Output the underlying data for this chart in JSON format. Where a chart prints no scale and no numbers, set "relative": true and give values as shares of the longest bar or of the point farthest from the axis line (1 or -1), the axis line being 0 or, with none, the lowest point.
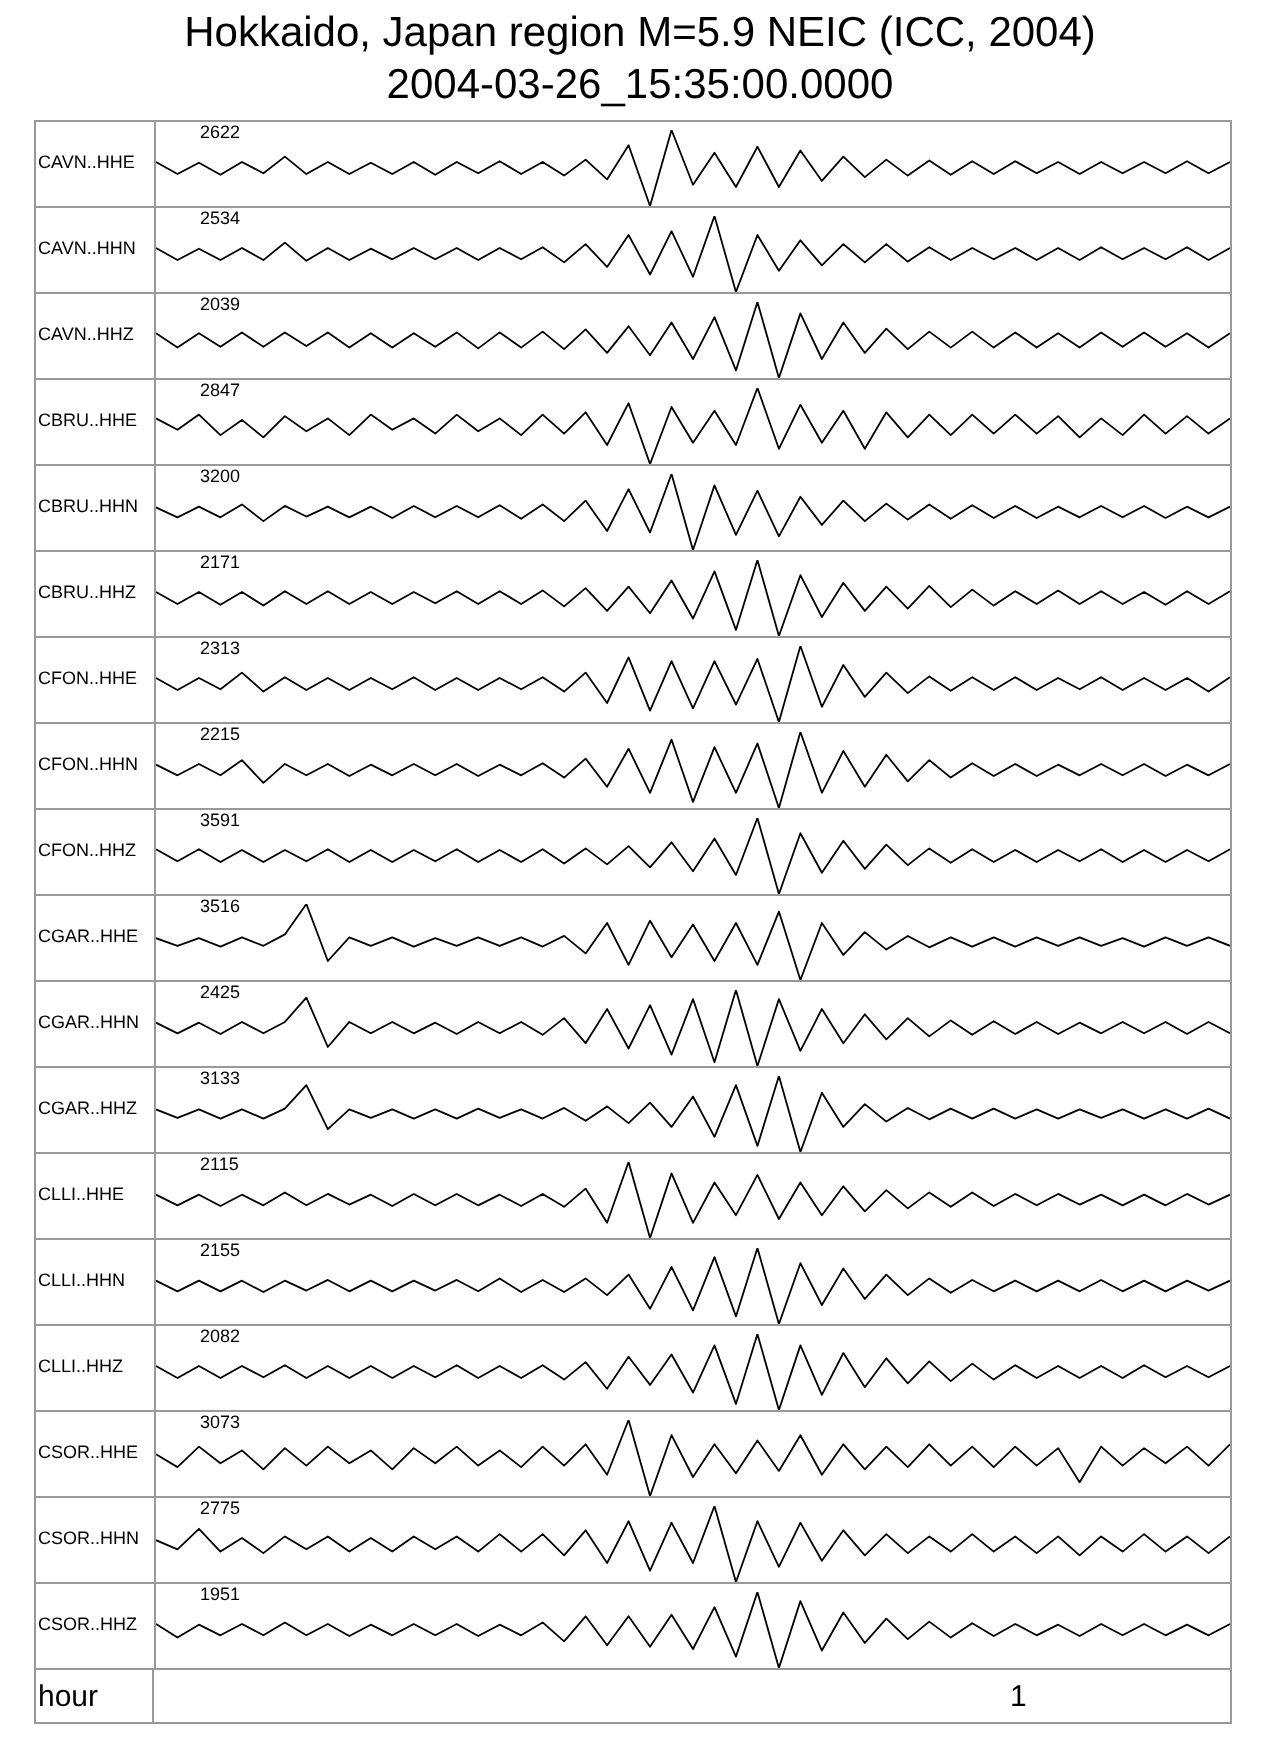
{
  "chart_data": [
    {
      "type": "line",
      "title": "Hokkaido, Japan region M=5.9 NEIC (ICC, 2004)",
      "subtitle": "2004-03-26_15:35:00.0000",
      "relative": true,
      "annotations": [
        "2622"
      ],
      "categories": [
        null,
        null,
        null,
        null,
        null,
        null,
        null,
        null,
        null,
        null,
        null,
        null,
        null,
        null,
        null,
        null,
        null,
        null,
        null,
        null,
        null,
        null,
        null,
        null,
        null,
        null,
        null,
        null,
        null,
        null,
        null,
        null,
        null,
        null,
        null,
        null,
        null,
        null,
        null,
        null,
        null,
        null,
        null,
        null,
        null,
        null,
        null,
        null,
        null,
        null,
        null
      ],
      "series": [
        {
          "name": "CAVN..HHE",
          "color": "#000000",
          "values": [
            0.58,
            0.42,
            0.57,
            0.41,
            0.58,
            0.43,
            0.65,
            0.42,
            0.58,
            0.42,
            0.57,
            0.42,
            0.58,
            0.41,
            0.58,
            0.43,
            0.59,
            0.42,
            0.58,
            0.4,
            0.61,
            0.35,
            0.8,
            0,
            1,
            0.28,
            0.7,
            0.25,
            0.78,
            0.25,
            0.73,
            0.33,
            0.65,
            0.38,
            0.61,
            0.4,
            0.6,
            0.41,
            0.59,
            0.42,
            0.59,
            0.43,
            0.58,
            0.42,
            0.58,
            0.43,
            0.58,
            0.43,
            0.59,
            0.43,
            0.58
          ]
        }
      ]
    },
    {
      "type": "line",
      "relative": true,
      "annotations": [
        "2534"
      ],
      "categories": [
        null,
        null,
        null,
        null,
        null,
        null,
        null,
        null,
        null,
        null,
        null,
        null,
        null,
        null,
        null,
        null,
        null,
        null,
        null,
        null,
        null,
        null,
        null,
        null,
        null,
        null,
        null,
        null,
        null,
        null,
        null,
        null,
        null,
        null,
        null,
        null,
        null,
        null,
        null,
        null,
        null,
        null,
        null,
        null,
        null,
        null,
        null,
        null,
        null,
        null,
        null
      ],
      "series": [
        {
          "name": "CAVN..HHN",
          "color": "#000000",
          "values": [
            0.58,
            0.42,
            0.57,
            0.42,
            0.58,
            0.42,
            0.65,
            0.41,
            0.58,
            0.42,
            0.57,
            0.43,
            0.58,
            0.43,
            0.58,
            0.42,
            0.58,
            0.43,
            0.59,
            0.39,
            0.63,
            0.33,
            0.75,
            0.23,
            0.8,
            0.2,
            1,
            0,
            0.75,
            0.28,
            0.68,
            0.35,
            0.63,
            0.39,
            0.63,
            0.4,
            0.59,
            0.42,
            0.58,
            0.43,
            0.58,
            0.42,
            0.58,
            0.42,
            0.59,
            0.43,
            0.58,
            0.43,
            0.59,
            0.42,
            0.58
          ]
        }
      ]
    },
    {
      "type": "line",
      "relative": true,
      "annotations": [
        "2039"
      ],
      "categories": [
        null,
        null,
        null,
        null,
        null,
        null,
        null,
        null,
        null,
        null,
        null,
        null,
        null,
        null,
        null,
        null,
        null,
        null,
        null,
        null,
        null,
        null,
        null,
        null,
        null,
        null,
        null,
        null,
        null,
        null,
        null,
        null,
        null,
        null,
        null,
        null,
        null,
        null,
        null,
        null,
        null,
        null,
        null,
        null,
        null,
        null,
        null,
        null,
        null,
        null,
        null
      ],
      "series": [
        {
          "name": "CAVN..HHZ",
          "color": "#000000",
          "values": [
            0.59,
            0.4,
            0.59,
            0.41,
            0.6,
            0.41,
            0.6,
            0.42,
            0.6,
            0.4,
            0.59,
            0.4,
            0.59,
            0.41,
            0.6,
            0.39,
            0.6,
            0.4,
            0.61,
            0.38,
            0.64,
            0.33,
            0.68,
            0.3,
            0.73,
            0.25,
            0.8,
            0.1,
            1,
            0,
            0.85,
            0.25,
            0.73,
            0.33,
            0.65,
            0.38,
            0.61,
            0.4,
            0.61,
            0.4,
            0.6,
            0.4,
            0.59,
            0.4,
            0.6,
            0.41,
            0.6,
            0.41,
            0.59,
            0.4,
            0.59
          ]
        }
      ]
    },
    {
      "type": "line",
      "relative": true,
      "annotations": [
        "2847"
      ],
      "categories": [
        null,
        null,
        null,
        null,
        null,
        null,
        null,
        null,
        null,
        null,
        null,
        null,
        null,
        null,
        null,
        null,
        null,
        null,
        null,
        null,
        null,
        null,
        null,
        null,
        null,
        null,
        null,
        null,
        null,
        null,
        null,
        null,
        null,
        null,
        null,
        null,
        null,
        null,
        null,
        null,
        null,
        null,
        null,
        null,
        null,
        null,
        null,
        null,
        null,
        null,
        null
      ],
      "series": [
        {
          "name": "CBRU..HHE",
          "color": "#000000",
          "values": [
            0.6,
            0.45,
            0.65,
            0.38,
            0.58,
            0.35,
            0.63,
            0.43,
            0.6,
            0.38,
            0.65,
            0.45,
            0.6,
            0.4,
            0.65,
            0.43,
            0.6,
            0.38,
            0.65,
            0.4,
            0.68,
            0.25,
            0.8,
            0,
            0.75,
            0.28,
            0.7,
            0.25,
            1,
            0.2,
            0.78,
            0.28,
            0.7,
            0.2,
            0.68,
            0.35,
            0.65,
            0.38,
            0.65,
            0.4,
            0.65,
            0.4,
            0.63,
            0.35,
            0.6,
            0.38,
            0.65,
            0.4,
            0.63,
            0.4,
            0.6
          ]
        }
      ]
    },
    {
      "type": "line",
      "relative": true,
      "annotations": [
        "3200"
      ],
      "categories": [
        null,
        null,
        null,
        null,
        null,
        null,
        null,
        null,
        null,
        null,
        null,
        null,
        null,
        null,
        null,
        null,
        null,
        null,
        null,
        null,
        null,
        null,
        null,
        null,
        null,
        null,
        null,
        null,
        null,
        null,
        null,
        null,
        null,
        null,
        null,
        null,
        null,
        null,
        null,
        null,
        null,
        null,
        null,
        null,
        null,
        null,
        null,
        null,
        null,
        null,
        null
      ],
      "series": [
        {
          "name": "CBRU..HHN",
          "color": "#000000",
          "values": [
            0.56,
            0.43,
            0.57,
            0.43,
            0.6,
            0.38,
            0.58,
            0.44,
            0.57,
            0.43,
            0.57,
            0.42,
            0.58,
            0.43,
            0.58,
            0.43,
            0.59,
            0.41,
            0.6,
            0.38,
            0.65,
            0.25,
            0.8,
            0.23,
            1,
            0,
            0.85,
            0.2,
            0.78,
            0.18,
            0.7,
            0.33,
            0.65,
            0.38,
            0.61,
            0.4,
            0.6,
            0.41,
            0.59,
            0.42,
            0.58,
            0.42,
            0.57,
            0.43,
            0.58,
            0.43,
            0.58,
            0.42,
            0.57,
            0.43,
            0.57
          ]
        }
      ]
    },
    {
      "type": "line",
      "relative": true,
      "annotations": [
        "2171"
      ],
      "categories": [
        null,
        null,
        null,
        null,
        null,
        null,
        null,
        null,
        null,
        null,
        null,
        null,
        null,
        null,
        null,
        null,
        null,
        null,
        null,
        null,
        null,
        null,
        null,
        null,
        null,
        null,
        null,
        null,
        null,
        null,
        null,
        null,
        null,
        null,
        null,
        null,
        null,
        null,
        null,
        null,
        null,
        null,
        null,
        null,
        null,
        null,
        null,
        null,
        null,
        null,
        null
      ],
      "series": [
        {
          "name": "CBRU..HHZ",
          "color": "#000000",
          "values": [
            0.58,
            0.42,
            0.58,
            0.41,
            0.58,
            0.4,
            0.59,
            0.42,
            0.59,
            0.42,
            0.58,
            0.42,
            0.58,
            0.43,
            0.59,
            0.42,
            0.59,
            0.42,
            0.6,
            0.39,
            0.63,
            0.33,
            0.65,
            0.3,
            0.73,
            0.23,
            0.85,
            0.08,
            1,
            0,
            0.8,
            0.25,
            0.7,
            0.33,
            0.65,
            0.36,
            0.66,
            0.38,
            0.61,
            0.4,
            0.59,
            0.42,
            0.6,
            0.42,
            0.59,
            0.42,
            0.58,
            0.41,
            0.59,
            0.42,
            0.59
          ]
        }
      ]
    },
    {
      "type": "line",
      "relative": true,
      "annotations": [
        "2313"
      ],
      "categories": [
        null,
        null,
        null,
        null,
        null,
        null,
        null,
        null,
        null,
        null,
        null,
        null,
        null,
        null,
        null,
        null,
        null,
        null,
        null,
        null,
        null,
        null,
        null,
        null,
        null,
        null,
        null,
        null,
        null,
        null,
        null,
        null,
        null,
        null,
        null,
        null,
        null,
        null,
        null,
        null,
        null,
        null,
        null,
        null,
        null,
        null,
        null,
        null,
        null,
        null,
        null
      ],
      "series": [
        {
          "name": "CFON..HHE",
          "color": "#000000",
          "values": [
            0.58,
            0.42,
            0.58,
            0.43,
            0.65,
            0.4,
            0.59,
            0.42,
            0.58,
            0.42,
            0.58,
            0.43,
            0.59,
            0.42,
            0.58,
            0.42,
            0.58,
            0.43,
            0.59,
            0.4,
            0.65,
            0.25,
            0.85,
            0.15,
            0.8,
            0.18,
            0.8,
            0.23,
            0.83,
            0,
            1,
            0.2,
            0.75,
            0.33,
            0.65,
            0.38,
            0.6,
            0.41,
            0.59,
            0.42,
            0.59,
            0.42,
            0.58,
            0.43,
            0.59,
            0.42,
            0.58,
            0.42,
            0.58,
            0.4,
            0.59
          ]
        }
      ]
    },
    {
      "type": "line",
      "relative": true,
      "annotations": [
        "2215"
      ],
      "categories": [
        null,
        null,
        null,
        null,
        null,
        null,
        null,
        null,
        null,
        null,
        null,
        null,
        null,
        null,
        null,
        null,
        null,
        null,
        null,
        null,
        null,
        null,
        null,
        null,
        null,
        null,
        null,
        null,
        null,
        null,
        null,
        null,
        null,
        null,
        null,
        null,
        null,
        null,
        null,
        null,
        null,
        null,
        null,
        null,
        null,
        null,
        null,
        null,
        null,
        null,
        null
      ],
      "series": [
        {
          "name": "CFON..HHN",
          "color": "#000000",
          "values": [
            0.57,
            0.43,
            0.58,
            0.43,
            0.63,
            0.33,
            0.58,
            0.43,
            0.58,
            0.42,
            0.57,
            0.43,
            0.58,
            0.43,
            0.58,
            0.42,
            0.57,
            0.43,
            0.59,
            0.4,
            0.65,
            0.28,
            0.78,
            0.2,
            0.9,
            0.08,
            0.8,
            0.2,
            0.85,
            0,
            1,
            0.2,
            0.75,
            0.28,
            0.7,
            0.35,
            0.63,
            0.4,
            0.59,
            0.42,
            0.58,
            0.42,
            0.57,
            0.43,
            0.58,
            0.43,
            0.58,
            0.42,
            0.57,
            0.43,
            0.58
          ]
        }
      ]
    },
    {
      "type": "line",
      "relative": true,
      "annotations": [
        "3591"
      ],
      "categories": [
        null,
        null,
        null,
        null,
        null,
        null,
        null,
        null,
        null,
        null,
        null,
        null,
        null,
        null,
        null,
        null,
        null,
        null,
        null,
        null,
        null,
        null,
        null,
        null,
        null,
        null,
        null,
        null,
        null,
        null,
        null,
        null,
        null,
        null,
        null,
        null,
        null,
        null,
        null,
        null,
        null,
        null,
        null,
        null,
        null,
        null,
        null,
        null,
        null,
        null,
        null
      ],
      "series": [
        {
          "name": "CFON..HHZ",
          "color": "#000000",
          "values": [
            0.59,
            0.43,
            0.59,
            0.42,
            0.58,
            0.42,
            0.58,
            0.43,
            0.59,
            0.42,
            0.58,
            0.42,
            0.58,
            0.43,
            0.59,
            0.42,
            0.58,
            0.42,
            0.59,
            0.4,
            0.6,
            0.39,
            0.63,
            0.35,
            0.68,
            0.3,
            0.73,
            0.25,
            1,
            0,
            0.8,
            0.28,
            0.7,
            0.33,
            0.65,
            0.38,
            0.6,
            0.41,
            0.59,
            0.42,
            0.58,
            0.42,
            0.58,
            0.43,
            0.59,
            0.42,
            0.58,
            0.42,
            0.58,
            0.43,
            0.59
          ]
        }
      ]
    },
    {
      "type": "line",
      "relative": true,
      "annotations": [
        "3516"
      ],
      "categories": [
        null,
        null,
        null,
        null,
        null,
        null,
        null,
        null,
        null,
        null,
        null,
        null,
        null,
        null,
        null,
        null,
        null,
        null,
        null,
        null,
        null,
        null,
        null,
        null,
        null,
        null,
        null,
        null,
        null,
        null,
        null,
        null,
        null,
        null,
        null,
        null,
        null,
        null,
        null,
        null,
        null,
        null,
        null,
        null,
        null,
        null,
        null,
        null,
        null,
        null,
        null
      ],
      "series": [
        {
          "name": "CGAR..HHE",
          "color": "#000000",
          "values": [
            0.55,
            0.45,
            0.55,
            0.44,
            0.56,
            0.45,
            0.6,
            1,
            0.25,
            0.56,
            0.45,
            0.56,
            0.44,
            0.55,
            0.45,
            0.56,
            0.45,
            0.56,
            0.44,
            0.58,
            0.35,
            0.75,
            0.2,
            0.78,
            0.3,
            0.73,
            0.25,
            0.75,
            0.2,
            0.9,
            0,
            0.75,
            0.33,
            0.63,
            0.4,
            0.58,
            0.43,
            0.56,
            0.44,
            0.56,
            0.44,
            0.56,
            0.45,
            0.56,
            0.45,
            0.55,
            0.44,
            0.56,
            0.45,
            0.56,
            0.45
          ]
        }
      ]
    },
    {
      "type": "line",
      "relative": true,
      "annotations": [
        "2425"
      ],
      "categories": [
        null,
        null,
        null,
        null,
        null,
        null,
        null,
        null,
        null,
        null,
        null,
        null,
        null,
        null,
        null,
        null,
        null,
        null,
        null,
        null,
        null,
        null,
        null,
        null,
        null,
        null,
        null,
        null,
        null,
        null,
        null,
        null,
        null,
        null,
        null,
        null,
        null,
        null,
        null,
        null,
        null,
        null,
        null,
        null,
        null,
        null,
        null,
        null,
        null,
        null,
        null
      ],
      "series": [
        {
          "name": "CGAR..HHN",
          "color": "#000000",
          "values": [
            0.57,
            0.43,
            0.57,
            0.42,
            0.58,
            0.43,
            0.58,
            0.9,
            0.25,
            0.58,
            0.43,
            0.58,
            0.43,
            0.57,
            0.42,
            0.58,
            0.43,
            0.58,
            0.41,
            0.63,
            0.3,
            0.75,
            0.23,
            0.8,
            0.15,
            0.88,
            0.05,
            1,
            0,
            0.88,
            0.2,
            0.75,
            0.3,
            0.68,
            0.35,
            0.63,
            0.39,
            0.6,
            0.41,
            0.59,
            0.42,
            0.58,
            0.42,
            0.57,
            0.43,
            0.58,
            0.43,
            0.58,
            0.42,
            0.58,
            0.43
          ]
        }
      ]
    },
    {
      "type": "line",
      "relative": true,
      "annotations": [
        "3133"
      ],
      "categories": [
        null,
        null,
        null,
        null,
        null,
        null,
        null,
        null,
        null,
        null,
        null,
        null,
        null,
        null,
        null,
        null,
        null,
        null,
        null,
        null,
        null,
        null,
        null,
        null,
        null,
        null,
        null,
        null,
        null,
        null,
        null,
        null,
        null,
        null,
        null,
        null,
        null,
        null,
        null,
        null,
        null,
        null,
        null,
        null,
        null,
        null,
        null,
        null,
        null,
        null,
        null
      ],
      "series": [
        {
          "name": "CGAR..HHZ",
          "color": "#000000",
          "values": [
            0.56,
            0.45,
            0.56,
            0.44,
            0.56,
            0.44,
            0.57,
            0.88,
            0.3,
            0.56,
            0.45,
            0.56,
            0.44,
            0.56,
            0.44,
            0.57,
            0.45,
            0.56,
            0.44,
            0.58,
            0.41,
            0.6,
            0.38,
            0.65,
            0.33,
            0.73,
            0.2,
            0.88,
            0.08,
            1,
            0,
            0.78,
            0.33,
            0.63,
            0.4,
            0.58,
            0.43,
            0.57,
            0.44,
            0.57,
            0.44,
            0.56,
            0.44,
            0.56,
            0.45,
            0.56,
            0.44,
            0.56,
            0.44,
            0.57,
            0.44
          ]
        }
      ]
    },
    {
      "type": "line",
      "relative": true,
      "annotations": [
        "2115"
      ],
      "categories": [
        null,
        null,
        null,
        null,
        null,
        null,
        null,
        null,
        null,
        null,
        null,
        null,
        null,
        null,
        null,
        null,
        null,
        null,
        null,
        null,
        null,
        null,
        null,
        null,
        null,
        null,
        null,
        null,
        null,
        null,
        null,
        null,
        null,
        null,
        null,
        null,
        null,
        null,
        null,
        null,
        null,
        null,
        null,
        null,
        null,
        null,
        null,
        null,
        null,
        null,
        null
      ],
      "series": [
        {
          "name": "CLLI..HHE",
          "color": "#000000",
          "values": [
            0.57,
            0.43,
            0.57,
            0.42,
            0.57,
            0.43,
            0.6,
            0.43,
            0.58,
            0.44,
            0.57,
            0.42,
            0.58,
            0.43,
            0.58,
            0.43,
            0.57,
            0.42,
            0.58,
            0.41,
            0.65,
            0.2,
            1,
            0,
            0.85,
            0.2,
            0.73,
            0.3,
            0.83,
            0.25,
            0.73,
            0.3,
            0.68,
            0.35,
            0.63,
            0.39,
            0.6,
            0.41,
            0.6,
            0.42,
            0.58,
            0.43,
            0.58,
            0.44,
            0.57,
            0.43,
            0.57,
            0.43,
            0.58,
            0.44,
            0.57
          ]
        }
      ]
    },
    {
      "type": "line",
      "relative": true,
      "annotations": [
        "2155"
      ],
      "categories": [
        null,
        null,
        null,
        null,
        null,
        null,
        null,
        null,
        null,
        null,
        null,
        null,
        null,
        null,
        null,
        null,
        null,
        null,
        null,
        null,
        null,
        null,
        null,
        null,
        null,
        null,
        null,
        null,
        null,
        null,
        null,
        null,
        null,
        null,
        null,
        null,
        null,
        null,
        null,
        null,
        null,
        null,
        null,
        null,
        null,
        null,
        null,
        null,
        null,
        null,
        null
      ],
      "series": [
        {
          "name": "CLLI..HHN",
          "color": "#000000",
          "values": [
            0.57,
            0.43,
            0.57,
            0.43,
            0.57,
            0.42,
            0.57,
            0.44,
            0.58,
            0.43,
            0.57,
            0.43,
            0.57,
            0.44,
            0.58,
            0.43,
            0.6,
            0.42,
            0.58,
            0.42,
            0.6,
            0.38,
            0.65,
            0.2,
            0.75,
            0.18,
            0.88,
            0.1,
            1,
            0,
            0.8,
            0.25,
            0.73,
            0.33,
            0.65,
            0.38,
            0.6,
            0.41,
            0.58,
            0.43,
            0.57,
            0.43,
            0.57,
            0.43,
            0.58,
            0.43,
            0.57,
            0.43,
            0.57,
            0.44,
            0.57
          ]
        }
      ]
    },
    {
      "type": "line",
      "relative": true,
      "annotations": [
        "2082"
      ],
      "categories": [
        null,
        null,
        null,
        null,
        null,
        null,
        null,
        null,
        null,
        null,
        null,
        null,
        null,
        null,
        null,
        null,
        null,
        null,
        null,
        null,
        null,
        null,
        null,
        null,
        null,
        null,
        null,
        null,
        null,
        null,
        null,
        null,
        null,
        null,
        null,
        null,
        null,
        null,
        null,
        null,
        null,
        null,
        null,
        null,
        null,
        null,
        null,
        null,
        null,
        null,
        null
      ],
      "series": [
        {
          "name": "CLLI..HHZ",
          "color": "#000000",
          "values": [
            0.58,
            0.42,
            0.58,
            0.42,
            0.58,
            0.43,
            0.59,
            0.42,
            0.58,
            0.42,
            0.58,
            0.42,
            0.58,
            0.43,
            0.59,
            0.42,
            0.58,
            0.42,
            0.59,
            0.4,
            0.63,
            0.28,
            0.7,
            0.33,
            0.73,
            0.23,
            0.85,
            0.08,
            1,
            0,
            0.85,
            0.2,
            0.75,
            0.3,
            0.68,
            0.35,
            0.64,
            0.38,
            0.61,
            0.4,
            0.59,
            0.42,
            0.58,
            0.42,
            0.58,
            0.42,
            0.59,
            0.43,
            0.58,
            0.43,
            0.58
          ]
        }
      ]
    },
    {
      "type": "line",
      "relative": true,
      "annotations": [
        "3073"
      ],
      "categories": [
        null,
        null,
        null,
        null,
        null,
        null,
        null,
        null,
        null,
        null,
        null,
        null,
        null,
        null,
        null,
        null,
        null,
        null,
        null,
        null,
        null,
        null,
        null,
        null,
        null,
        null,
        null,
        null,
        null,
        null,
        null,
        null,
        null,
        null,
        null,
        null,
        null,
        null,
        null,
        null,
        null,
        null,
        null,
        null,
        null,
        null,
        null,
        null,
        null,
        null,
        null
      ],
      "series": [
        {
          "name": "CSOR..HHE",
          "color": "#000000",
          "values": [
            0.55,
            0.38,
            0.65,
            0.43,
            0.6,
            0.35,
            0.63,
            0.4,
            0.65,
            0.43,
            0.6,
            0.35,
            0.63,
            0.43,
            0.65,
            0.4,
            0.6,
            0.38,
            0.65,
            0.4,
            0.68,
            0.28,
            1,
            0,
            0.8,
            0.25,
            0.68,
            0.3,
            0.73,
            0.33,
            0.8,
            0.28,
            0.68,
            0.35,
            0.65,
            0.38,
            0.68,
            0.4,
            0.65,
            0.38,
            0.65,
            0.4,
            0.63,
            0.18,
            0.65,
            0.4,
            0.63,
            0.43,
            0.65,
            0.4,
            0.68
          ]
        }
      ]
    },
    {
      "type": "line",
      "relative": true,
      "annotations": [
        "2775"
      ],
      "categories": [
        null,
        null,
        null,
        null,
        null,
        null,
        null,
        null,
        null,
        null,
        null,
        null,
        null,
        null,
        null,
        null,
        null,
        null,
        null,
        null,
        null,
        null,
        null,
        null,
        null,
        null,
        null,
        null,
        null,
        null,
        null,
        null,
        null,
        null,
        null,
        null,
        null,
        null,
        null,
        null,
        null,
        null,
        null,
        null,
        null,
        null,
        null,
        null,
        null,
        null,
        null
      ],
      "series": [
        {
          "name": "CSOR..HHN",
          "color": "#000000",
          "values": [
            0.55,
            0.43,
            0.7,
            0.4,
            0.58,
            0.38,
            0.6,
            0.43,
            0.6,
            0.4,
            0.58,
            0.4,
            0.6,
            0.43,
            0.6,
            0.4,
            0.63,
            0.4,
            0.63,
            0.35,
            0.68,
            0.25,
            0.8,
            0.15,
            0.78,
            0.25,
            1,
            0,
            0.8,
            0.2,
            0.78,
            0.28,
            0.68,
            0.35,
            0.63,
            0.38,
            0.6,
            0.4,
            0.63,
            0.4,
            0.6,
            0.38,
            0.6,
            0.35,
            0.6,
            0.4,
            0.63,
            0.4,
            0.6,
            0.38,
            0.6
          ]
        }
      ]
    },
    {
      "type": "line",
      "relative": true,
      "xlabel": "hour",
      "annotations": [
        "1951",
        "1"
      ],
      "categories": [
        null,
        null,
        null,
        null,
        null,
        null,
        null,
        null,
        null,
        null,
        null,
        null,
        null,
        null,
        null,
        null,
        null,
        null,
        null,
        null,
        null,
        null,
        null,
        null,
        null,
        null,
        null,
        null,
        null,
        null,
        null,
        null,
        null,
        null,
        null,
        null,
        null,
        null,
        null,
        null,
        null,
        null,
        null,
        null,
        null,
        null,
        null,
        null,
        null,
        null,
        null
      ],
      "series": [
        {
          "name": "CSOR..HHZ",
          "color": "#000000",
          "values": [
            0.58,
            0.4,
            0.57,
            0.43,
            0.58,
            0.43,
            0.6,
            0.43,
            0.58,
            0.42,
            0.57,
            0.43,
            0.58,
            0.43,
            0.58,
            0.42,
            0.57,
            0.43,
            0.6,
            0.35,
            0.68,
            0.3,
            0.68,
            0.28,
            0.7,
            0.25,
            0.8,
            0.15,
            1,
            0,
            0.88,
            0.23,
            0.73,
            0.33,
            0.65,
            0.38,
            0.61,
            0.4,
            0.59,
            0.42,
            0.58,
            0.43,
            0.57,
            0.42,
            0.58,
            0.43,
            0.58,
            0.43,
            0.57,
            0.43,
            0.58
          ]
        }
      ]
    }
  ]
}
